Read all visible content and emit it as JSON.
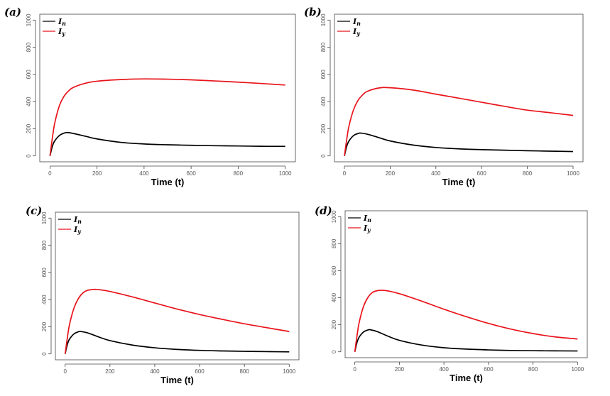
{
  "chart_data": [
    {
      "panel_label": "(a)",
      "type": "line",
      "xlabel": "Time (t)",
      "xlim": [
        0,
        1000
      ],
      "ylim": [
        0,
        1000
      ],
      "x_ticks": [
        "0",
        "200",
        "400",
        "600",
        "800",
        "1000"
      ],
      "y_ticks": [
        "0",
        "200",
        "400",
        "600",
        "800",
        "1000"
      ],
      "legend_position": "top-left",
      "legend": [
        "I_n",
        "I_y"
      ],
      "series": [
        {
          "name": "I_n",
          "color": "#000000",
          "x": [
            0,
            10,
            20,
            40,
            60,
            75,
            100,
            150,
            200,
            300,
            400,
            500,
            600,
            700,
            800,
            900,
            1000
          ],
          "y": [
            0,
            70,
            110,
            150,
            168,
            172,
            165,
            145,
            125,
            100,
            88,
            82,
            78,
            75,
            73,
            71,
            70
          ]
        },
        {
          "name": "I_y",
          "color": "#e8141b",
          "x": [
            0,
            10,
            20,
            40,
            60,
            80,
            100,
            150,
            200,
            300,
            400,
            500,
            600,
            700,
            800,
            900,
            1000
          ],
          "y": [
            0,
            130,
            240,
            370,
            440,
            480,
            505,
            535,
            550,
            562,
            567,
            565,
            560,
            552,
            543,
            533,
            522
          ]
        }
      ]
    },
    {
      "panel_label": "(b)",
      "type": "line",
      "xlabel": "Time (t)",
      "xlim": [
        0,
        1000
      ],
      "ylim": [
        0,
        1000
      ],
      "x_ticks": [
        "0",
        "200",
        "400",
        "600",
        "800",
        "1000"
      ],
      "y_ticks": [
        "0",
        "200",
        "400",
        "600",
        "800",
        "1000"
      ],
      "legend_position": "top-left",
      "legend": [
        "I_n",
        "I_y"
      ],
      "series": [
        {
          "name": "I_n",
          "color": "#000000",
          "x": [
            0,
            10,
            20,
            40,
            60,
            70,
            100,
            150,
            200,
            300,
            400,
            500,
            600,
            700,
            800,
            900,
            1000
          ],
          "y": [
            0,
            70,
            110,
            150,
            165,
            168,
            160,
            135,
            110,
            80,
            62,
            52,
            46,
            42,
            38,
            35,
            32
          ]
        },
        {
          "name": "I_y",
          "color": "#e8141b",
          "x": [
            0,
            10,
            20,
            40,
            60,
            80,
            100,
            150,
            200,
            300,
            400,
            500,
            600,
            700,
            800,
            900,
            1000
          ],
          "y": [
            0,
            120,
            220,
            340,
            410,
            450,
            475,
            500,
            502,
            485,
            455,
            425,
            395,
            365,
            337,
            318,
            298
          ]
        }
      ]
    },
    {
      "panel_label": "(c)",
      "type": "line",
      "xlabel": "Time (t)",
      "xlim": [
        0,
        1000
      ],
      "ylim": [
        0,
        1000
      ],
      "x_ticks": [
        "0",
        "200",
        "400",
        "600",
        "800",
        "1000"
      ],
      "y_ticks": [
        "0",
        "200",
        "400",
        "600",
        "800",
        "1000"
      ],
      "legend_position": "top-left",
      "legend": [
        "I_n",
        "I_y"
      ],
      "series": [
        {
          "name": "I_n",
          "color": "#000000",
          "x": [
            0,
            10,
            20,
            40,
            60,
            70,
            100,
            150,
            200,
            300,
            400,
            500,
            600,
            700,
            800,
            900,
            1000
          ],
          "y": [
            0,
            70,
            110,
            148,
            163,
            165,
            155,
            125,
            98,
            65,
            45,
            33,
            26,
            22,
            19,
            17,
            15
          ]
        },
        {
          "name": "I_y",
          "color": "#e8141b",
          "x": [
            0,
            10,
            20,
            40,
            60,
            80,
            100,
            130,
            150,
            200,
            300,
            400,
            500,
            600,
            700,
            800,
            900,
            1000
          ],
          "y": [
            0,
            120,
            220,
            340,
            410,
            450,
            468,
            475,
            473,
            460,
            420,
            375,
            330,
            290,
            255,
            222,
            193,
            165
          ]
        }
      ]
    },
    {
      "panel_label": "(d)",
      "type": "line",
      "xlabel": "Time (t)",
      "xlim": [
        0,
        1000
      ],
      "ylim": [
        0,
        1000
      ],
      "x_ticks": [
        "0",
        "200",
        "400",
        "600",
        "800",
        "1000"
      ],
      "y_ticks": [
        "0",
        "200",
        "400",
        "600",
        "800",
        "1000"
      ],
      "legend_position": "top-left",
      "legend": [
        "I_n",
        "I_y"
      ],
      "series": [
        {
          "name": "I_n",
          "color": "#000000",
          "x": [
            0,
            10,
            20,
            40,
            60,
            70,
            100,
            150,
            200,
            300,
            400,
            500,
            600,
            700,
            800,
            900,
            1000
          ],
          "y": [
            0,
            70,
            110,
            148,
            162,
            163,
            150,
            115,
            85,
            50,
            30,
            20,
            14,
            10,
            8,
            7,
            6
          ]
        },
        {
          "name": "I_y",
          "color": "#e8141b",
          "x": [
            0,
            10,
            20,
            40,
            60,
            80,
            100,
            120,
            150,
            200,
            300,
            400,
            500,
            600,
            700,
            800,
            900,
            1000
          ],
          "y": [
            0,
            120,
            220,
            340,
            405,
            440,
            452,
            455,
            450,
            430,
            375,
            315,
            260,
            210,
            168,
            135,
            110,
            95
          ]
        }
      ]
    }
  ]
}
